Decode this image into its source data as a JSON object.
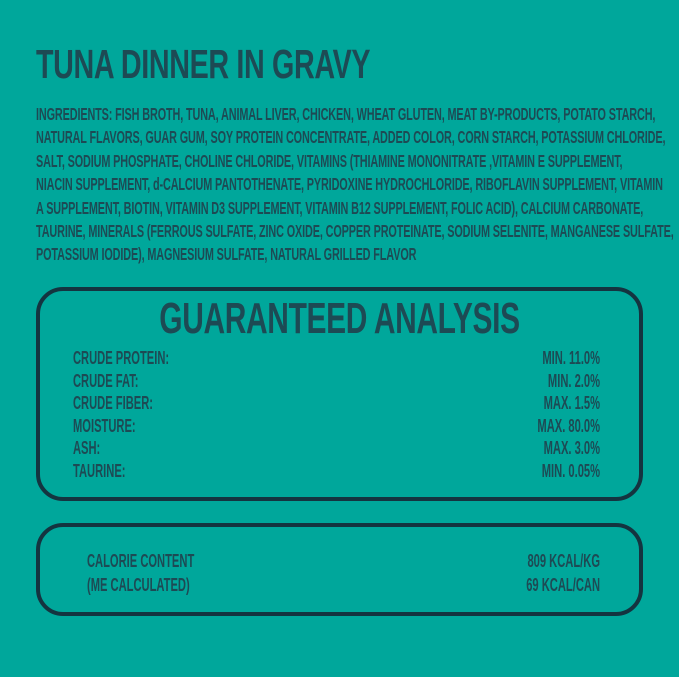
{
  "label": {
    "title": "TUNA DINNER IN GRAVY",
    "ingredients": {
      "lines": [
        "INGREDIENTS: FISH BROTH, TUNA, ANIMAL LIVER, CHICKEN, WHEAT GLUTEN, MEAT BY-PRODUCTS, POTATO STARCH,",
        "NATURAL FLAVORS, GUAR GUM, SOY PROTEIN CONCENTRATE, ADDED COLOR, CORN STARCH, POTASSIUM CHLORIDE,",
        "SALT, SODIUM PHOSPHATE, CHOLINE CHLORIDE, VITAMINS (THIAMINE MONONITRATE ,VITAMIN E SUPPLEMENT,",
        "NIACIN SUPPLEMENT, d-CALCIUM PANTOTHENATE, PYRIDOXINE HYDROCHLORIDE, RIBOFLAVIN SUPPLEMENT, VITAMIN",
        "A SUPPLEMENT, BIOTIN, VITAMIN D3 SUPPLEMENT, VITAMIN B12 SUPPLEMENT, FOLIC ACID), CALCIUM CARBONATE,",
        "TAURINE, MINERALS (FERROUS SULFATE, ZINC OXIDE, COPPER PROTEINATE, SODIUM SELENITE, MANGANESE SULFATE,",
        "POTASSIUM IODIDE), MAGNESIUM SULFATE, NATURAL GRILLED FLAVOR"
      ]
    },
    "guaranteed_analysis": {
      "heading": "GUARANTEED ANALYSIS",
      "rows": [
        {
          "name": "CRUDE PROTEIN:",
          "value": "MIN. 11.0%"
        },
        {
          "name": "CRUDE FAT:",
          "value": "MIN. 2.0%"
        },
        {
          "name": "CRUDE FIBER:",
          "value": "MAX. 1.5%"
        },
        {
          "name": "MOISTURE:",
          "value": "MAX. 80.0%"
        },
        {
          "name": "ASH:",
          "value": "MAX. 3.0%"
        },
        {
          "name": "TAURINE:",
          "value": "MIN. 0.05%"
        }
      ]
    },
    "calorie_content": {
      "label_line1": "CALORIE CONTENT",
      "label_line2": "(ME CALCULATED)",
      "value_line1": "809 KCAL/KG",
      "value_line2": "69 KCAL/CAN"
    },
    "colors": {
      "background": "#00A79B",
      "ink": "#1D4A54",
      "border": "#143440"
    }
  }
}
